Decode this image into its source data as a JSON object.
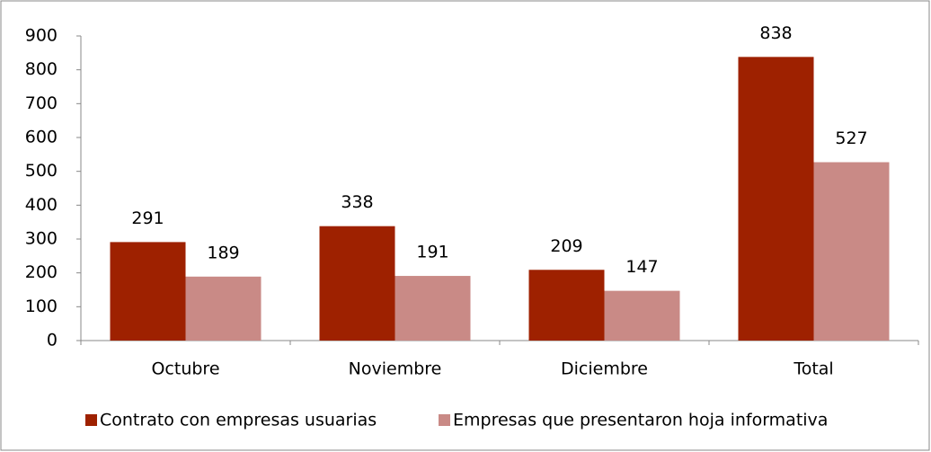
{
  "chart_data": {
    "type": "bar",
    "categories": [
      "Octubre",
      "Noviembre",
      "Diciembre",
      "Total"
    ],
    "series": [
      {
        "name": "Contrato con empresas usuarias",
        "color": "#9e2100",
        "values": [
          291,
          338,
          209,
          838
        ]
      },
      {
        "name": "Empresas que presentaron hoja informativa",
        "color": "#c98a86",
        "values": [
          189,
          191,
          147,
          527
        ]
      }
    ],
    "ylim": [
      0,
      900
    ],
    "yticks": [
      0,
      100,
      200,
      300,
      400,
      500,
      600,
      700,
      800,
      900
    ],
    "grid": false,
    "legend": "bottom"
  }
}
